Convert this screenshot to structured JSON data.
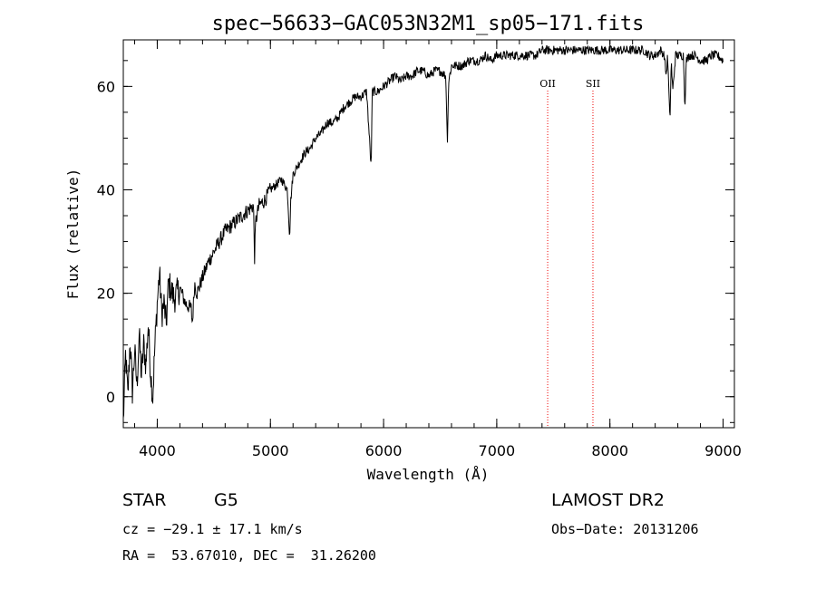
{
  "chart_data": {
    "type": "line",
    "title": "spec−56633−GAC053N32M1_sp05−171.fits",
    "xlabel": "Wavelength (Å)",
    "ylabel": "Flux (relative)",
    "xlim": [
      3700,
      9100
    ],
    "ylim": [
      -6,
      69
    ],
    "xticks": [
      4000,
      5000,
      6000,
      7000,
      8000,
      9000
    ],
    "xtick_labels": [
      "4000",
      "5000",
      "6000",
      "7000",
      "8000",
      "9000"
    ],
    "yticks": [
      0,
      20,
      40,
      60
    ],
    "ytick_labels": [
      "0",
      "20",
      "40",
      "60"
    ],
    "x_minor_step": 200,
    "y_minor_step": 5,
    "grid": false,
    "series": [
      {
        "name": "flux",
        "color": "#000000",
        "x": [
          3700,
          3720,
          3740,
          3760,
          3780,
          3800,
          3820,
          3840,
          3860,
          3880,
          3900,
          3920,
          3940,
          3960,
          3980,
          4000,
          4020,
          4040,
          4060,
          4080,
          4100,
          4150,
          4200,
          4250,
          4300,
          4310,
          4330,
          4350,
          4400,
          4450,
          4500,
          4550,
          4600,
          4650,
          4700,
          4750,
          4800,
          4850,
          4860,
          4870,
          4900,
          4950,
          5000,
          5050,
          5100,
          5150,
          5170,
          5180,
          5200,
          5250,
          5300,
          5350,
          5400,
          5450,
          5500,
          5550,
          5600,
          5650,
          5700,
          5750,
          5800,
          5850,
          5880,
          5890,
          5900,
          5950,
          6000,
          6050,
          6100,
          6150,
          6200,
          6250,
          6300,
          6350,
          6400,
          6450,
          6500,
          6550,
          6563,
          6575,
          6600,
          6650,
          6700,
          6750,
          6800,
          6850,
          6900,
          6950,
          7000,
          7050,
          7100,
          7150,
          7200,
          7250,
          7300,
          7350,
          7400,
          7450,
          7500,
          7550,
          7600,
          7650,
          7700,
          7750,
          7800,
          7850,
          7900,
          7950,
          8000,
          8050,
          8100,
          8150,
          8200,
          8250,
          8300,
          8350,
          8400,
          8450,
          8480,
          8498,
          8510,
          8530,
          8542,
          8555,
          8580,
          8620,
          8650,
          8662,
          8675,
          8700,
          8750,
          8800,
          8850,
          8900,
          8950,
          9000
        ],
        "y": [
          -5,
          8,
          0,
          11,
          1,
          9,
          2,
          12,
          4,
          10,
          6,
          14,
          5,
          0,
          10,
          18,
          24,
          16,
          18,
          14,
          22,
          19,
          21,
          18,
          17,
          14,
          22,
          20,
          23,
          26,
          28,
          30,
          32,
          33,
          34,
          35,
          36,
          37,
          27,
          34,
          37,
          38,
          40,
          41,
          42,
          40,
          31,
          38,
          43,
          45,
          47,
          48,
          50,
          51,
          53,
          53,
          54,
          56,
          57,
          58,
          58,
          59,
          48,
          44,
          59,
          59,
          60,
          61,
          62,
          61,
          62,
          62,
          63,
          63,
          62,
          63,
          63,
          62,
          49,
          61,
          64,
          64,
          64,
          65,
          65,
          65,
          66,
          65,
          66,
          66,
          66,
          66,
          66,
          66,
          66,
          66,
          67,
          67,
          67,
          67,
          67,
          67,
          67,
          67,
          67,
          67,
          67,
          67,
          67,
          67,
          67,
          67,
          67,
          67,
          67,
          66,
          66,
          67,
          66,
          62,
          66,
          53,
          65,
          59,
          66,
          66,
          66,
          56,
          65,
          66,
          66,
          65,
          65,
          66,
          66,
          65
        ]
      }
    ],
    "annotations": [
      {
        "label": "OII",
        "x": 7450,
        "color": "#ee0000",
        "style": "dotted"
      },
      {
        "label": "SII",
        "x": 7850,
        "color": "#ee0000",
        "style": "dotted"
      }
    ]
  },
  "info": {
    "object_type": "STAR",
    "spectral_class": "G5",
    "survey": "LAMOST DR2",
    "redshift_line": "cz = −29.1 ± 17.1 km/s",
    "obs_date_line": "Obs−Date: 20131206",
    "coords_line": "RA =  53.67010, DEC =  31.26200"
  }
}
